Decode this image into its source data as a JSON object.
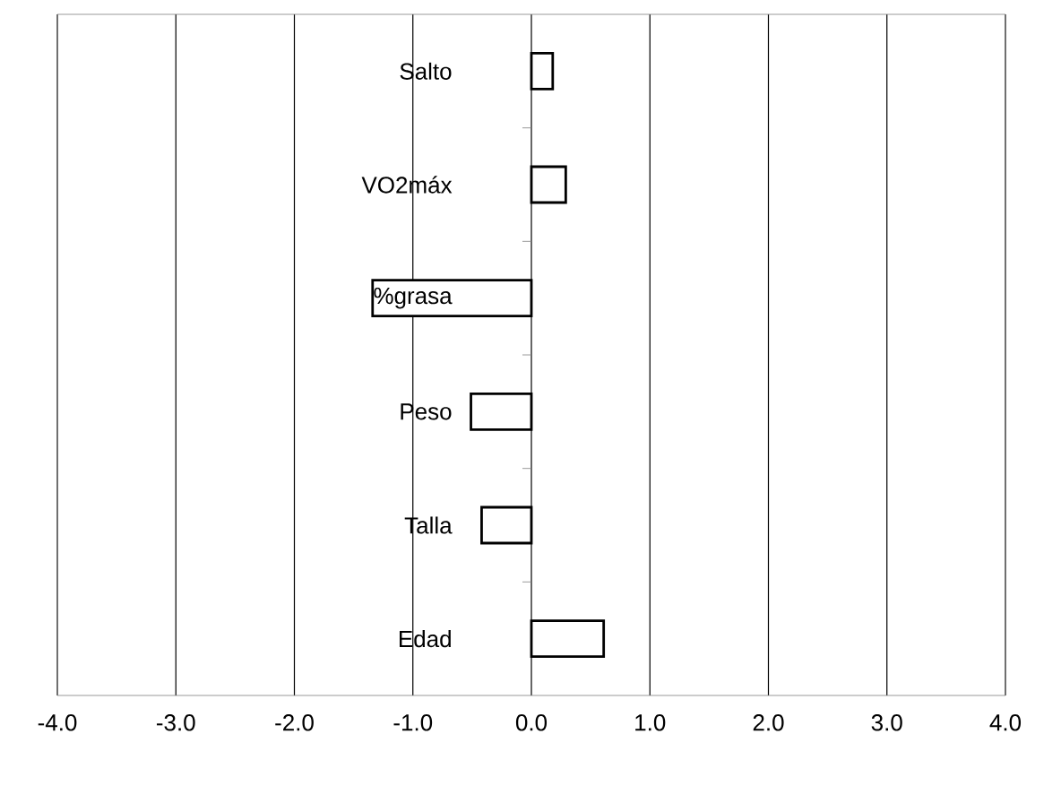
{
  "chart_data": {
    "type": "bar",
    "orientation": "horizontal",
    "categories": [
      "Salto",
      "VO2máx",
      "%grasa",
      "Peso",
      "Talla",
      "Edad"
    ],
    "values": [
      0.18,
      0.29,
      -1.34,
      -0.51,
      -0.42,
      0.61
    ],
    "color": "#ffffff",
    "xlim": [
      -4,
      4
    ],
    "xticks": [
      {
        "value": -4,
        "label": "-4.0"
      },
      {
        "value": -3,
        "label": "-3.0"
      },
      {
        "value": -2,
        "label": "-2.0"
      },
      {
        "value": -1,
        "label": "-1.0"
      },
      {
        "value": 0,
        "label": "0.0"
      },
      {
        "value": 1,
        "label": "1.0"
      },
      {
        "value": 2,
        "label": "2.0"
      },
      {
        "value": 3,
        "label": "3.0"
      },
      {
        "value": 4,
        "label": "4.0"
      }
    ],
    "grid": "x"
  }
}
